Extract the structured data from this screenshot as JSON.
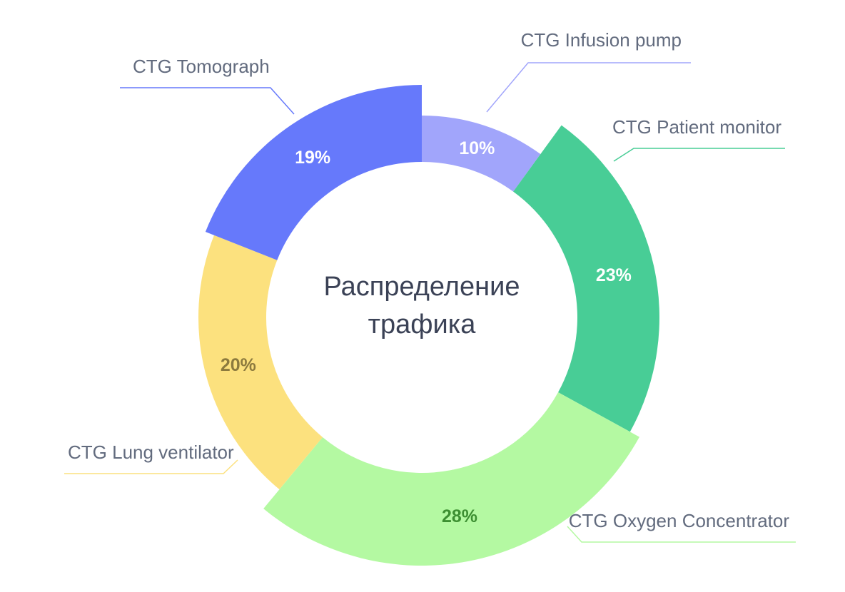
{
  "chart_data": {
    "type": "pie",
    "title": "Распределение трафика",
    "title_lines": [
      "Распределение",
      "трафика"
    ],
    "categories": [
      "CTG Infusion pump",
      "CTG Patient monitor",
      "CTG Oxygen Concentrator",
      "CTG Lung ventilator",
      "CTG Tomograph"
    ],
    "values": [
      10,
      23,
      28,
      20,
      19
    ],
    "value_labels": [
      "10%",
      "23%",
      "28%",
      "20%",
      "19%"
    ],
    "colors": [
      "#a1a5fb",
      "#48cd96",
      "#b4f9a2",
      "#fce17e",
      "#6679fb"
    ],
    "label_colors": [
      "#ffffff",
      "#ffffff",
      "#3d8f32",
      "#8c7a3e",
      "#ffffff"
    ],
    "style": "donut"
  }
}
